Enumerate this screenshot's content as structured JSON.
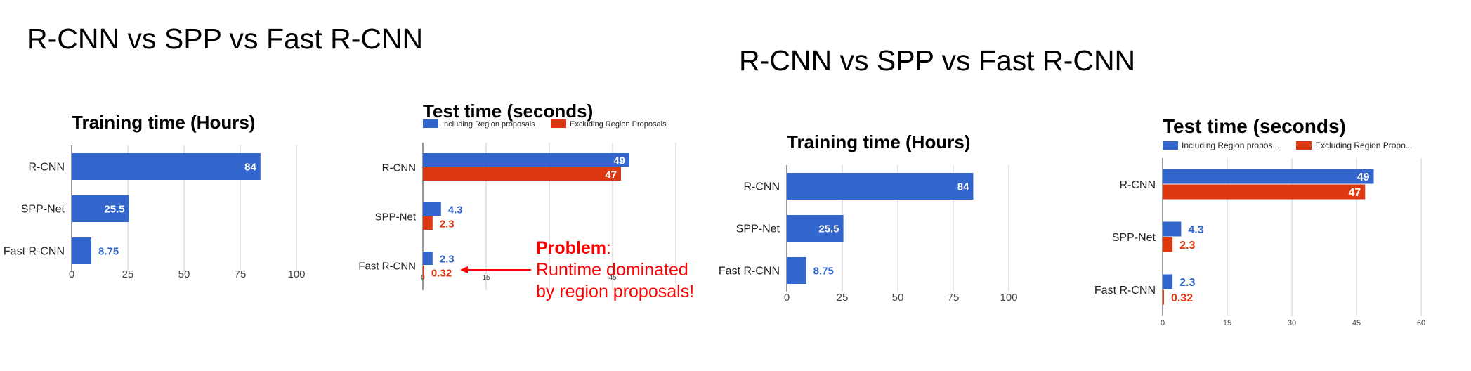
{
  "slides": [
    {
      "title": "R-CNN vs SPP vs Fast R-CNN",
      "annotation": {
        "heading": "Problem",
        "colon": ":",
        "line1": "Runtime dominated",
        "line2": "by region proposals!"
      }
    },
    {
      "title": "R-CNN vs SPP vs Fast R-CNN"
    }
  ],
  "colors": {
    "blue": "#3366cc",
    "red": "#dc3912",
    "grid": "#cccccc",
    "annotation": "#ff0000"
  },
  "chart_data": [
    {
      "type": "bar",
      "orientation": "horizontal",
      "title": "Training time (Hours)",
      "categories": [
        "R-CNN",
        "SPP-Net",
        "Fast R-CNN"
      ],
      "series": [
        {
          "values": [
            84,
            25.5,
            8.75
          ],
          "labels": [
            "84",
            "25.5",
            "8.75"
          ],
          "color": "#3366cc"
        }
      ],
      "xlim": [
        0,
        100
      ],
      "xticks": [
        0,
        25,
        50,
        75,
        100
      ],
      "tick_labels": [
        "0",
        "25",
        "50",
        "75",
        "100"
      ],
      "grid": true
    },
    {
      "type": "bar",
      "orientation": "horizontal",
      "title": "Test time (seconds)",
      "categories": [
        "R-CNN",
        "SPP-Net",
        "Fast R-CNN"
      ],
      "series": [
        {
          "name": "Including Region proposals",
          "values": [
            49,
            4.3,
            2.3
          ],
          "labels": [
            "49",
            "4.3",
            "2.3"
          ],
          "color": "#3366cc"
        },
        {
          "name": "Excluding Region Proposals",
          "values": [
            47,
            2.3,
            0.32
          ],
          "labels": [
            "47",
            "2.3",
            "0.32"
          ],
          "color": "#dc3912"
        }
      ],
      "xlim": [
        0,
        60
      ],
      "xticks": [
        0,
        15,
        30,
        45,
        60
      ],
      "tick_labels": [
        "0",
        "15",
        "",
        "45",
        ""
      ],
      "legend": "top",
      "grid": true
    },
    {
      "type": "bar",
      "orientation": "horizontal",
      "title": "Training time (Hours)",
      "categories": [
        "R-CNN",
        "SPP-Net",
        "Fast R-CNN"
      ],
      "series": [
        {
          "values": [
            84,
            25.5,
            8.75
          ],
          "labels": [
            "84",
            "25.5",
            "8.75"
          ],
          "color": "#3366cc"
        }
      ],
      "xlim": [
        0,
        100
      ],
      "xticks": [
        0,
        25,
        50,
        75,
        100
      ],
      "tick_labels": [
        "0",
        "25",
        "50",
        "75",
        "100"
      ],
      "grid": true
    },
    {
      "type": "bar",
      "orientation": "horizontal",
      "title": "Test time (seconds)",
      "categories": [
        "R-CNN",
        "SPP-Net",
        "Fast R-CNN"
      ],
      "series": [
        {
          "name": "Including Region propos...",
          "values": [
            49,
            4.3,
            2.3
          ],
          "labels": [
            "49",
            "4.3",
            "2.3"
          ],
          "color": "#3366cc"
        },
        {
          "name": "Excluding Region Propo...",
          "values": [
            47,
            2.3,
            0.32
          ],
          "labels": [
            "47",
            "2.3",
            "0.32"
          ],
          "color": "#dc3912"
        }
      ],
      "xlim": [
        0,
        60
      ],
      "xticks": [
        0,
        15,
        30,
        45,
        60
      ],
      "tick_labels": [
        "0",
        "15",
        "30",
        "45",
        "60"
      ],
      "legend": "top",
      "grid": true
    }
  ]
}
